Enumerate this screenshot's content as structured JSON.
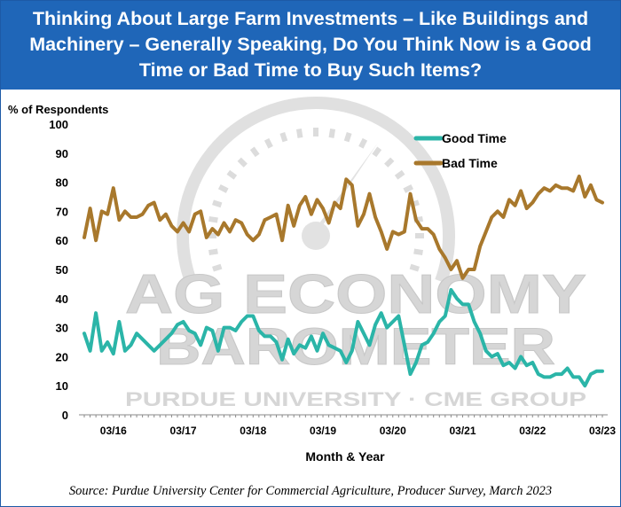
{
  "title": "Thinking About Large Farm Investments – Like Buildings and Machinery – Generally Speaking, Do You Think Now is a Good Time or Bad Time to Buy Such Items?",
  "source": "Source: Purdue University Center for Commercial Agriculture, Producer Survey, March 2023",
  "watermark": {
    "line1": "AG ECONOMY",
    "line2": "BAROMETER",
    "line3": "PURDUE UNIVERSITY · CME GROUP"
  },
  "colors": {
    "title_bg": "#1f66b8",
    "good_time": "#2bb5a8",
    "bad_time": "#a8782c",
    "watermark": "#d3d3d3"
  },
  "chart_data": {
    "type": "line",
    "ylabel": "% of Respondents",
    "xlabel": "Month & Year",
    "ylim": [
      0,
      100
    ],
    "yticks": [
      0,
      10,
      20,
      30,
      40,
      50,
      60,
      70,
      80,
      90,
      100
    ],
    "xlim": [
      "2015-10",
      "2023-03"
    ],
    "xtick_labels": [
      {
        "date": "2016-03",
        "label": "03/16"
      },
      {
        "date": "2017-03",
        "label": "03/17"
      },
      {
        "date": "2018-03",
        "label": "03/18"
      },
      {
        "date": "2019-03",
        "label": "03/19"
      },
      {
        "date": "2020-03",
        "label": "03/20"
      },
      {
        "date": "2021-03",
        "label": "03/21"
      },
      {
        "date": "2022-03",
        "label": "03/22"
      },
      {
        "date": "2023-03",
        "label": "03/23"
      }
    ],
    "grid": false,
    "legend_position": "top-right",
    "x": [
      "2015-10",
      "2015-11",
      "2015-12",
      "2016-01",
      "2016-02",
      "2016-03",
      "2016-04",
      "2016-05",
      "2016-06",
      "2016-07",
      "2016-08",
      "2016-09",
      "2016-10",
      "2016-11",
      "2016-12",
      "2017-01",
      "2017-02",
      "2017-03",
      "2017-04",
      "2017-05",
      "2017-06",
      "2017-07",
      "2017-08",
      "2017-09",
      "2017-10",
      "2017-11",
      "2017-12",
      "2018-01",
      "2018-02",
      "2018-03",
      "2018-04",
      "2018-05",
      "2018-06",
      "2018-07",
      "2018-08",
      "2018-09",
      "2018-10",
      "2018-11",
      "2018-12",
      "2019-01",
      "2019-02",
      "2019-03",
      "2019-04",
      "2019-05",
      "2019-06",
      "2019-07",
      "2019-08",
      "2019-09",
      "2019-10",
      "2019-11",
      "2019-12",
      "2020-01",
      "2020-02",
      "2020-03",
      "2020-04",
      "2020-05",
      "2020-06",
      "2020-07",
      "2020-08",
      "2020-09",
      "2020-10",
      "2020-11",
      "2020-12",
      "2021-01",
      "2021-02",
      "2021-03",
      "2021-04",
      "2021-05",
      "2021-06",
      "2021-07",
      "2021-08",
      "2021-09",
      "2021-10",
      "2021-11",
      "2021-12",
      "2022-01",
      "2022-02",
      "2022-03",
      "2022-04",
      "2022-05",
      "2022-06",
      "2022-07",
      "2022-08",
      "2022-09",
      "2022-10",
      "2022-11",
      "2022-12",
      "2023-01",
      "2023-02",
      "2023-03"
    ],
    "series": [
      {
        "name": "Good Time",
        "values": [
          28,
          22,
          35,
          22,
          25,
          21,
          32,
          22,
          24,
          28,
          26,
          24,
          22,
          24,
          26,
          28,
          31,
          32,
          29,
          28,
          24,
          30,
          29,
          22,
          30,
          30,
          29,
          32,
          34,
          34,
          29,
          27,
          27,
          25,
          19,
          26,
          21,
          24,
          23,
          27,
          22,
          28,
          24,
          23,
          22,
          18,
          22,
          32,
          28,
          24,
          31,
          35,
          30,
          32,
          34,
          24,
          14,
          18,
          24,
          25,
          28,
          32,
          34,
          43,
          40,
          38,
          38,
          32,
          28,
          22,
          20,
          21,
          17,
          18,
          16,
          20,
          17,
          18,
          14,
          13,
          13,
          14,
          14,
          16,
          13,
          13,
          10,
          14,
          15,
          15
        ]
      },
      {
        "name": "Bad Time",
        "values": [
          61,
          71,
          60,
          70,
          69,
          78,
          67,
          70,
          68,
          68,
          69,
          72,
          73,
          67,
          69,
          65,
          63,
          66,
          63,
          69,
          70,
          61,
          64,
          62,
          66,
          63,
          67,
          66,
          62,
          60,
          62,
          67,
          68,
          69,
          60,
          72,
          65,
          72,
          75,
          69,
          74,
          71,
          66,
          73,
          71,
          81,
          79,
          65,
          69,
          76,
          68,
          63,
          57,
          63,
          62,
          63,
          76,
          67,
          64,
          64,
          62,
          57,
          54,
          50,
          53,
          47,
          50,
          50,
          58,
          63,
          68,
          70,
          68,
          74,
          72,
          77,
          71,
          73,
          76,
          78,
          77,
          79,
          78,
          78,
          77,
          82,
          75,
          79,
          74,
          73
        ]
      }
    ]
  }
}
